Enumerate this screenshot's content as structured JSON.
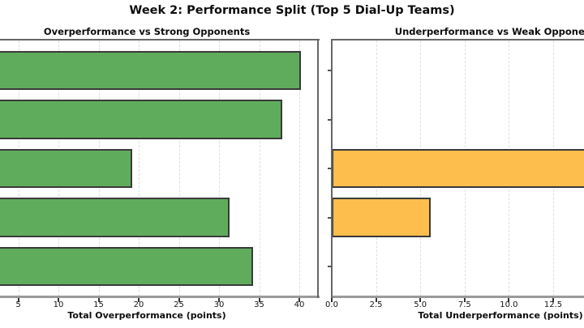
{
  "figure_title": "Week 2: Performance Split (Top 5 Dial-Up Teams)",
  "chart_data": [
    {
      "type": "bar",
      "orientation": "horizontal",
      "panel": "left",
      "title": "Overperformance vs Strong Opponents",
      "xlabel": "Total Overperformance (points)",
      "categories": [
        null,
        null,
        null,
        null,
        null
      ],
      "categories_note": "Five team rows; y-axis team-name labels are cropped off the left edge of the screenshot",
      "values": [
        40.2,
        37.9,
        19.2,
        31.3,
        34.2
      ],
      "xticks": [
        5,
        10,
        15,
        20,
        25,
        30,
        35,
        40
      ],
      "xtick_labels": [
        "5",
        "10",
        "15",
        "20",
        "25",
        "30",
        "35",
        "40"
      ],
      "xlim": [
        0,
        42.3
      ],
      "bar_color": "#5fad5c",
      "bar_edge_color": "#3a3a3a",
      "grid": "vertical dashed lightgray",
      "legend": "none",
      "clipped_left_edge": true
    },
    {
      "type": "bar",
      "orientation": "horizontal",
      "panel": "right",
      "title": "Underperformance vs Weak Opponents",
      "title_visible_portion": "Underperformance vs Weak Oppon",
      "xlabel": "Total Underperformance (points)",
      "categories": [
        null,
        null,
        null,
        null,
        null
      ],
      "categories_note": "Same five team rows; right axes shows unlabeled y tick marks",
      "values": [
        0,
        0,
        18,
        5.6,
        0
      ],
      "values_note": "Row 3 bar runs past the right crop edge (>=14.3 visible); 18 is an estimate from axis scaling",
      "xticks": [
        0,
        2.5,
        5,
        7.5,
        10,
        12.5
      ],
      "xtick_labels": [
        "0.0",
        "2.5",
        "5.0",
        "7.5",
        "10.0",
        "12.5"
      ],
      "xlim": [
        0,
        19
      ],
      "bar_color": "#fdbe4d",
      "bar_edge_color": "#3a3a3a",
      "grid": "vertical dashed lightgray",
      "legend": "none",
      "clipped_right_edge": true
    }
  ]
}
